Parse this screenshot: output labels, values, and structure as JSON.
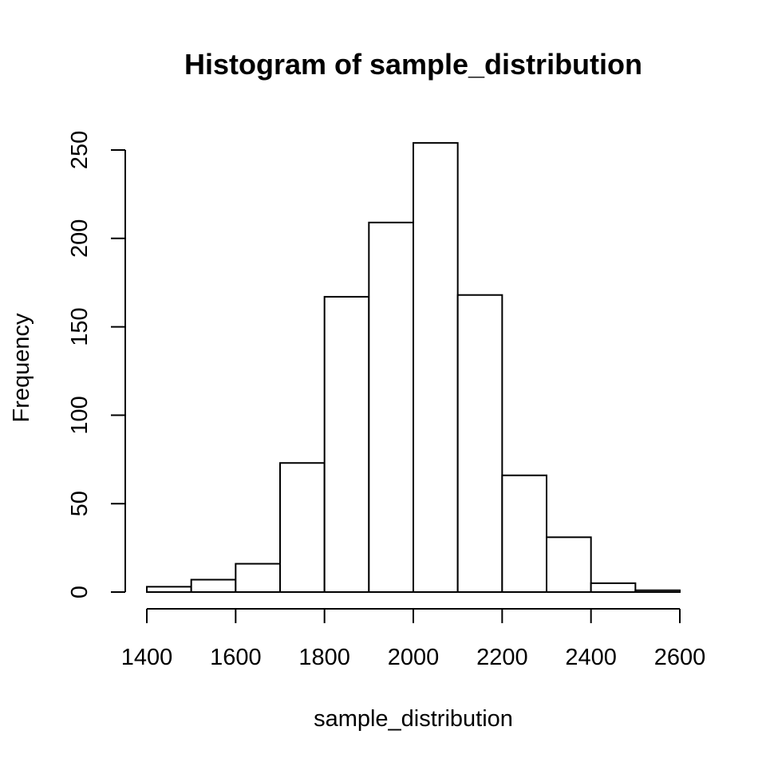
{
  "chart_data": {
    "type": "bar",
    "title": "Histogram of sample_distribution",
    "xlabel": "sample_distribution",
    "ylabel": "Frequency",
    "bins": [
      {
        "start": 1400,
        "end": 1500,
        "count": 3
      },
      {
        "start": 1500,
        "end": 1600,
        "count": 7
      },
      {
        "start": 1600,
        "end": 1700,
        "count": 16
      },
      {
        "start": 1700,
        "end": 1800,
        "count": 73
      },
      {
        "start": 1800,
        "end": 1900,
        "count": 167
      },
      {
        "start": 1900,
        "end": 2000,
        "count": 209
      },
      {
        "start": 2000,
        "end": 2100,
        "count": 254
      },
      {
        "start": 2100,
        "end": 2200,
        "count": 168
      },
      {
        "start": 2200,
        "end": 2300,
        "count": 66
      },
      {
        "start": 2300,
        "end": 2400,
        "count": 31
      },
      {
        "start": 2400,
        "end": 2500,
        "count": 5
      },
      {
        "start": 2500,
        "end": 2600,
        "count": 1
      }
    ],
    "xlim": [
      1400,
      2600
    ],
    "ylim": [
      0,
      250
    ],
    "x_ticks": [
      1400,
      1600,
      1800,
      2000,
      2200,
      2400,
      2600
    ],
    "y_ticks": [
      0,
      50,
      100,
      150,
      200,
      250
    ],
    "grid": false,
    "legend": "none"
  }
}
